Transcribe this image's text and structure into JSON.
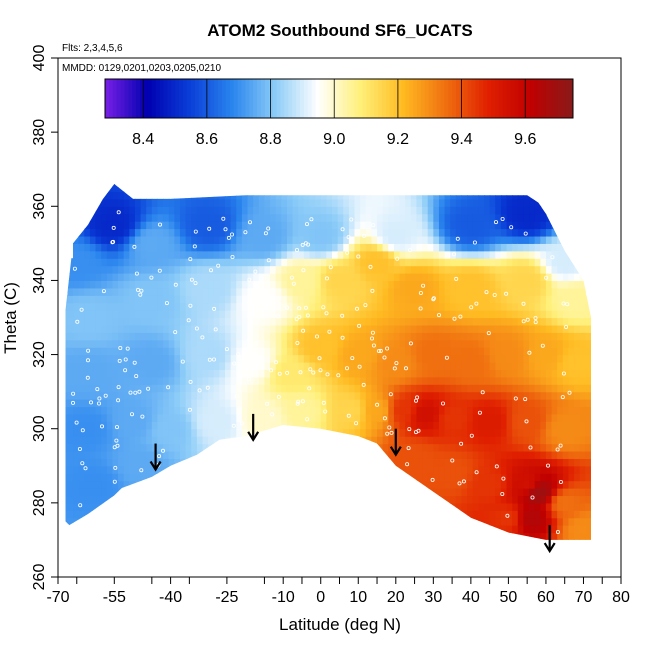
{
  "chart_data": {
    "type": "heatmap",
    "title": "ATOM2 Southbound SF6_UCATS",
    "notes": [
      "Flts: 2,3,4,5,6",
      "MMDD: 0129,0201,0203,0205,0210"
    ],
    "xlabel": "Latitude (deg N)",
    "ylabel": "Theta (C)",
    "xlim": [
      -70,
      80
    ],
    "ylim": [
      260,
      400
    ],
    "x_ticks": [
      -70,
      -55,
      -40,
      -25,
      -10,
      0,
      10,
      20,
      30,
      40,
      50,
      60,
      70,
      80
    ],
    "y_ticks": [
      260,
      280,
      300,
      320,
      340,
      360,
      380,
      400
    ],
    "colorbar": {
      "range": [
        8.28,
        9.75
      ],
      "ticks": [
        8.4,
        8.6,
        8.8,
        9.0,
        9.2,
        9.4,
        9.6
      ],
      "tick_labels": [
        "8.4",
        "8.6",
        "8.8",
        "9.0",
        "9.2",
        "9.4",
        "9.6"
      ],
      "colors": [
        "#7a1fe6",
        "#0000b0",
        "#0a3fd8",
        "#2a85ee",
        "#8cccf8",
        "#ffffff",
        "#fff07a",
        "#ffbb22",
        "#f07010",
        "#e02000",
        "#c00000",
        "#8a1a1a"
      ]
    },
    "boundary": {
      "top": [
        [
          -68,
          332
        ],
        [
          -66,
          350
        ],
        [
          -62,
          355
        ],
        [
          -58,
          362
        ],
        [
          -55,
          366
        ],
        [
          -50,
          362
        ],
        [
          -40,
          362
        ],
        [
          -20,
          363
        ],
        [
          0,
          363
        ],
        [
          20,
          363
        ],
        [
          40,
          363
        ],
        [
          55,
          363
        ],
        [
          58,
          361
        ],
        [
          60,
          358
        ],
        [
          65,
          348
        ],
        [
          70,
          340
        ],
        [
          72,
          330
        ]
      ],
      "bottom": [
        [
          72,
          270
        ],
        [
          70,
          270
        ],
        [
          65,
          270
        ],
        [
          60,
          270
        ],
        [
          50,
          272
        ],
        [
          40,
          276
        ],
        [
          30,
          283
        ],
        [
          20,
          290
        ],
        [
          15,
          296
        ],
        [
          10,
          298
        ],
        [
          0,
          300
        ],
        [
          -10,
          301
        ],
        [
          -20,
          298
        ],
        [
          -27,
          297
        ],
        [
          -33,
          293
        ],
        [
          -40,
          290
        ],
        [
          -45,
          287
        ],
        [
          -53,
          284
        ],
        [
          -55,
          282
        ],
        [
          -62,
          277
        ],
        [
          -67,
          274
        ],
        [
          -68,
          275
        ]
      ]
    },
    "field_points": [
      {
        "lat": -65,
        "theta": 345,
        "value": 8.7
      },
      {
        "lat": -55,
        "theta": 355,
        "value": 8.5
      },
      {
        "lat": -45,
        "theta": 350,
        "value": 8.75
      },
      {
        "lat": -30,
        "theta": 355,
        "value": 8.6
      },
      {
        "lat": -15,
        "theta": 352,
        "value": 8.75
      },
      {
        "lat": 0,
        "theta": 352,
        "value": 8.8
      },
      {
        "lat": 20,
        "theta": 352,
        "value": 8.9
      },
      {
        "lat": 40,
        "theta": 355,
        "value": 8.6
      },
      {
        "lat": 55,
        "theta": 358,
        "value": 8.5
      },
      {
        "lat": 65,
        "theta": 345,
        "value": 8.9
      },
      {
        "lat": -62,
        "theta": 330,
        "value": 8.8
      },
      {
        "lat": -45,
        "theta": 335,
        "value": 8.8
      },
      {
        "lat": -30,
        "theta": 338,
        "value": 8.85
      },
      {
        "lat": -15,
        "theta": 335,
        "value": 8.95
      },
      {
        "lat": -5,
        "theta": 340,
        "value": 9.05
      },
      {
        "lat": 5,
        "theta": 340,
        "value": 9.15
      },
      {
        "lat": 15,
        "theta": 345,
        "value": 9.2
      },
      {
        "lat": 25,
        "theta": 338,
        "value": 9.25
      },
      {
        "lat": 40,
        "theta": 338,
        "value": 9.2
      },
      {
        "lat": 55,
        "theta": 340,
        "value": 9.15
      },
      {
        "lat": 68,
        "theta": 335,
        "value": 9.05
      },
      {
        "lat": -62,
        "theta": 315,
        "value": 8.75
      },
      {
        "lat": -45,
        "theta": 318,
        "value": 8.75
      },
      {
        "lat": -30,
        "theta": 320,
        "value": 8.85
      },
      {
        "lat": -18,
        "theta": 318,
        "value": 8.95
      },
      {
        "lat": -8,
        "theta": 315,
        "value": 9.1
      },
      {
        "lat": 0,
        "theta": 322,
        "value": 9.2
      },
      {
        "lat": 10,
        "theta": 320,
        "value": 9.25
      },
      {
        "lat": 20,
        "theta": 318,
        "value": 9.3
      },
      {
        "lat": 30,
        "theta": 320,
        "value": 9.35
      },
      {
        "lat": 40,
        "theta": 318,
        "value": 9.35
      },
      {
        "lat": 50,
        "theta": 320,
        "value": 9.3
      },
      {
        "lat": 60,
        "theta": 320,
        "value": 9.25
      },
      {
        "lat": 68,
        "theta": 318,
        "value": 9.2
      },
      {
        "lat": -62,
        "theta": 300,
        "value": 8.7
      },
      {
        "lat": -50,
        "theta": 302,
        "value": 8.75
      },
      {
        "lat": -40,
        "theta": 300,
        "value": 8.8
      },
      {
        "lat": -28,
        "theta": 302,
        "value": 8.9
      },
      {
        "lat": -15,
        "theta": 303,
        "value": 9.0
      },
      {
        "lat": -5,
        "theta": 305,
        "value": 9.05
      },
      {
        "lat": 8,
        "theta": 305,
        "value": 9.15
      },
      {
        "lat": 15,
        "theta": 305,
        "value": 9.25
      },
      {
        "lat": 22,
        "theta": 305,
        "value": 9.45
      },
      {
        "lat": 28,
        "theta": 304,
        "value": 9.55
      },
      {
        "lat": 35,
        "theta": 303,
        "value": 9.45
      },
      {
        "lat": 45,
        "theta": 302,
        "value": 9.5
      },
      {
        "lat": 55,
        "theta": 302,
        "value": 9.4
      },
      {
        "lat": 65,
        "theta": 300,
        "value": 9.3
      },
      {
        "lat": -60,
        "theta": 285,
        "value": 8.7
      },
      {
        "lat": -48,
        "theta": 290,
        "value": 8.75
      },
      {
        "lat": 25,
        "theta": 292,
        "value": 9.4
      },
      {
        "lat": 35,
        "theta": 288,
        "value": 9.4
      },
      {
        "lat": 45,
        "theta": 285,
        "value": 9.45
      },
      {
        "lat": 55,
        "theta": 285,
        "value": 9.55
      },
      {
        "lat": 58,
        "theta": 283,
        "value": 9.7
      },
      {
        "lat": 56,
        "theta": 276,
        "value": 9.65
      },
      {
        "lat": 65,
        "theta": 280,
        "value": 9.35
      },
      {
        "lat": 70,
        "theta": 273,
        "value": 9.3
      },
      {
        "lat": 50,
        "theta": 276,
        "value": 9.45
      }
    ],
    "arrows": [
      {
        "lat": -44,
        "theta_top": 296,
        "theta_tip": 289
      },
      {
        "lat": -18,
        "theta_top": 304,
        "theta_tip": 297
      },
      {
        "lat": 20,
        "theta_top": 300,
        "theta_tip": 293
      },
      {
        "lat": 61,
        "theta_top": 274,
        "theta_tip": 267
      }
    ],
    "grid": false,
    "legend": "top"
  }
}
